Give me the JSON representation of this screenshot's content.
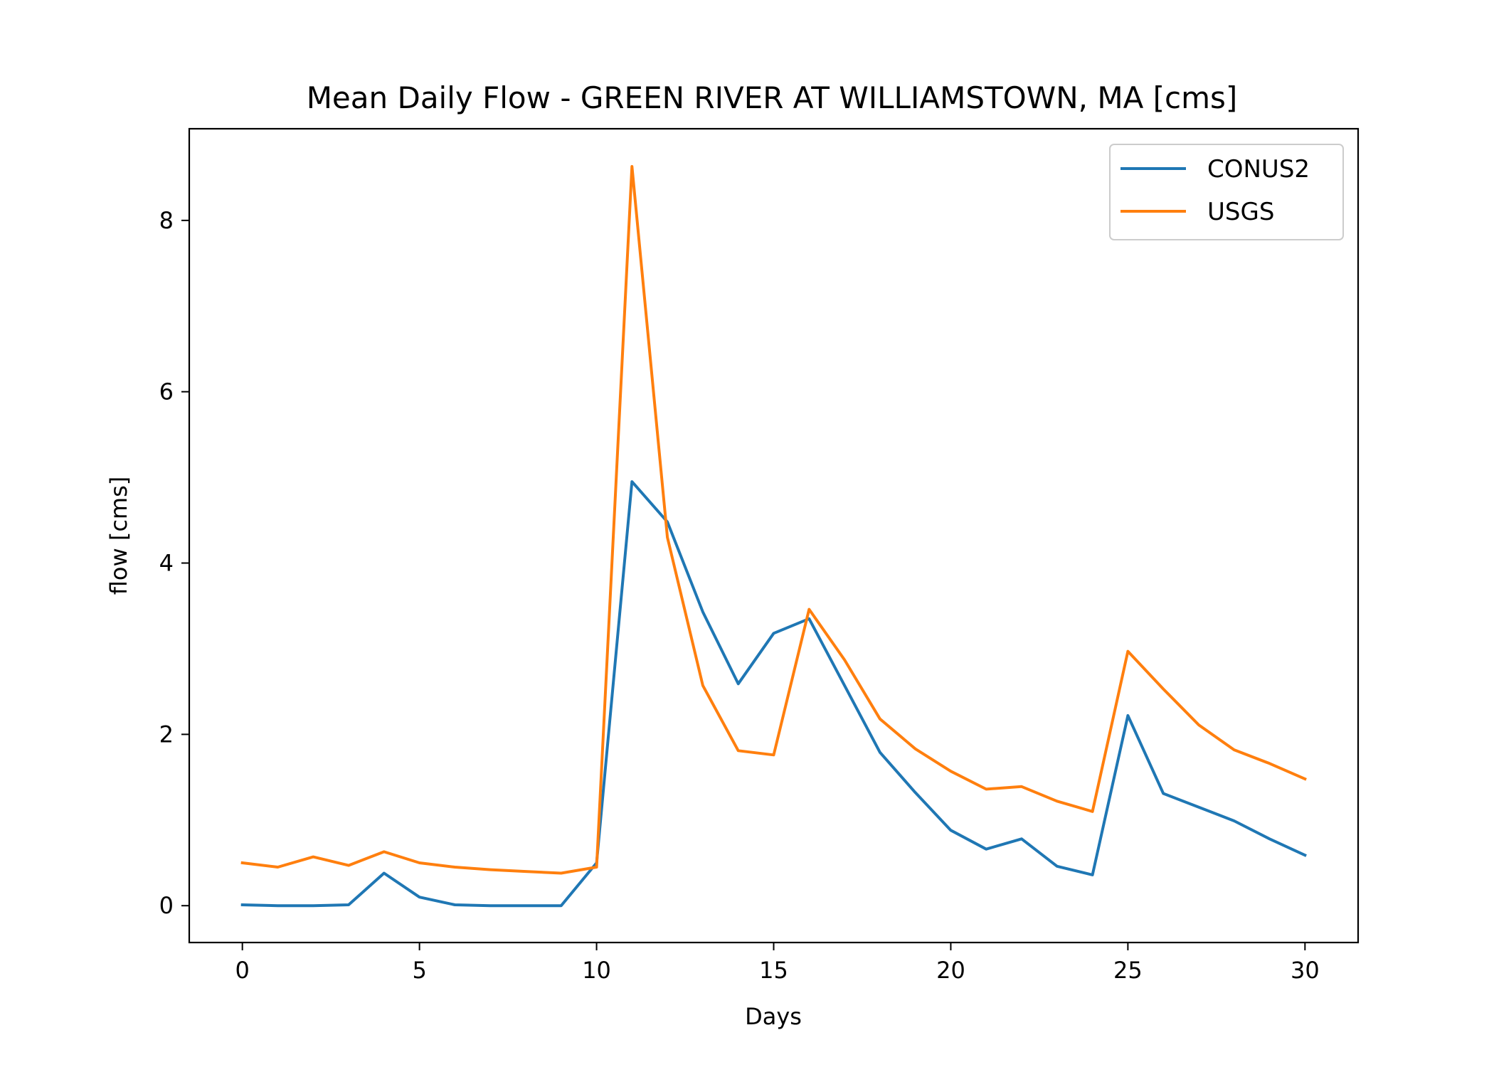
{
  "chart_data": {
    "type": "line",
    "title": "Mean Daily Flow - GREEN RIVER AT WILLIAMSTOWN, MA [cms]",
    "xlabel": "Days",
    "ylabel": "flow [cms]",
    "xlim": [
      -1.5,
      31.5
    ],
    "ylim": [
      -0.43,
      9.07
    ],
    "xticks": [
      0,
      5,
      10,
      15,
      20,
      25,
      30
    ],
    "yticks": [
      0,
      2,
      4,
      6,
      8
    ],
    "grid": false,
    "legend_position": "top-right",
    "x": [
      0,
      1,
      2,
      3,
      4,
      5,
      6,
      7,
      8,
      9,
      10,
      11,
      12,
      13,
      14,
      15,
      16,
      17,
      18,
      19,
      20,
      21,
      22,
      23,
      24,
      25,
      26,
      27,
      28,
      29,
      30
    ],
    "series": [
      {
        "name": "CONUS2",
        "color": "#1f77b4",
        "values": [
          0.01,
          0.0,
          0.0,
          0.01,
          0.38,
          0.1,
          0.01,
          0.0,
          0.0,
          0.0,
          0.5,
          4.95,
          4.48,
          3.43,
          2.59,
          3.18,
          3.35,
          2.57,
          1.79,
          1.32,
          0.88,
          0.66,
          0.78,
          0.46,
          0.36,
          2.22,
          1.31,
          1.15,
          0.99,
          0.78,
          0.59
        ]
      },
      {
        "name": "USGS",
        "color": "#ff7f0e",
        "values": [
          0.5,
          0.45,
          0.57,
          0.47,
          0.63,
          0.5,
          0.45,
          0.42,
          0.4,
          0.38,
          0.45,
          8.63,
          4.3,
          2.57,
          1.81,
          1.76,
          3.46,
          2.87,
          2.18,
          1.83,
          1.57,
          1.36,
          1.39,
          1.22,
          1.1,
          2.97,
          2.53,
          2.11,
          1.82,
          1.66,
          1.48
        ]
      }
    ]
  }
}
